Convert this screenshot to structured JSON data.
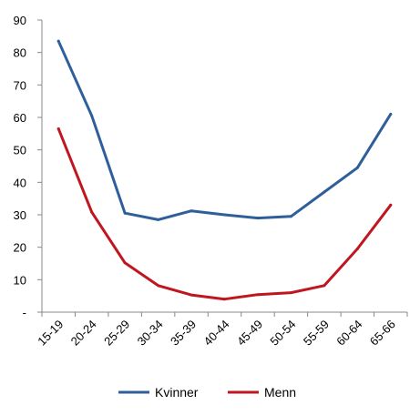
{
  "chart_data": {
    "type": "line",
    "categories": [
      "15-19",
      "20-24",
      "25-29",
      "30-34",
      "35-39",
      "40-44",
      "45-49",
      "50-54",
      "55-59",
      "60-64",
      "65-66"
    ],
    "series": [
      {
        "name": "Kvinner",
        "color": "#2E5F9A",
        "values": [
          83.5,
          60.5,
          30.5,
          28.5,
          31.2,
          30.0,
          29.0,
          29.5,
          37.0,
          44.5,
          61.0
        ]
      },
      {
        "name": "Menn",
        "color": "#C0161F",
        "values": [
          56.5,
          30.8,
          15.2,
          8.2,
          5.3,
          4.0,
          5.4,
          6.0,
          8.2,
          19.5,
          33.0
        ]
      }
    ],
    "y_ticks": [
      "-",
      "10",
      "20",
      "30",
      "40",
      "50",
      "60",
      "70",
      "80",
      "90"
    ],
    "ylim": [
      0,
      90
    ],
    "grid": false,
    "legend_position": "bottom"
  }
}
